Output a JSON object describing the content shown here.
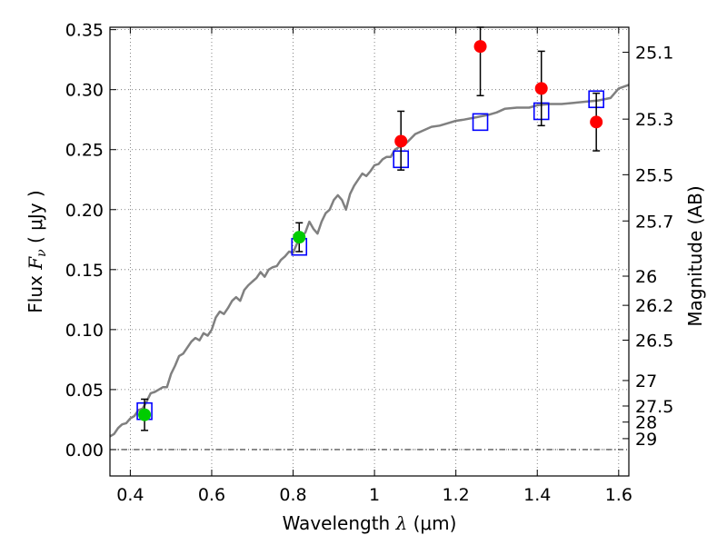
{
  "chart_data": {
    "type": "scatter",
    "title": "",
    "xlabel": {
      "prefix": "Wavelength  ",
      "symbol": "λ",
      "unit": " (μm)"
    },
    "ylabel": {
      "prefix": "Flux  ",
      "symbol": "F",
      "subscript": "ν",
      "unit": " ( μJy )"
    },
    "y2label": "Magnitude (AB)",
    "xlim": [
      0.35,
      1.625
    ],
    "ylim": [
      -0.022,
      0.352
    ],
    "grid": true,
    "xticks": [
      {
        "v": 0.4,
        "label": "0.4"
      },
      {
        "v": 0.6,
        "label": "0.6"
      },
      {
        "v": 0.8,
        "label": "0.8"
      },
      {
        "v": 1.0,
        "label": "1"
      },
      {
        "v": 1.2,
        "label": "1.2"
      },
      {
        "v": 1.4,
        "label": "1.4"
      },
      {
        "v": 1.6,
        "label": "1.6"
      }
    ],
    "yticks": [
      {
        "v": 0.0,
        "label": "0.00"
      },
      {
        "v": 0.05,
        "label": "0.05"
      },
      {
        "v": 0.1,
        "label": "0.10"
      },
      {
        "v": 0.15,
        "label": "0.15"
      },
      {
        "v": 0.2,
        "label": "0.20"
      },
      {
        "v": 0.25,
        "label": "0.25"
      },
      {
        "v": 0.3,
        "label": "0.30"
      },
      {
        "v": 0.35,
        "label": "0.35"
      }
    ],
    "y2ticks": [
      {
        "mag": "25.1"
      },
      {
        "mag": "25.3"
      },
      {
        "mag": "25.5"
      },
      {
        "mag": "25.7"
      },
      {
        "mag": "26"
      },
      {
        "mag": "26.2"
      },
      {
        "mag": "26.5"
      },
      {
        "mag": "27"
      },
      {
        "mag": "27.5"
      },
      {
        "mag": "28"
      },
      {
        "mag": "29"
      }
    ],
    "series": [
      {
        "kind": "line",
        "color": "#808080",
        "points": [
          [
            0.35,
            0.011
          ],
          [
            0.36,
            0.013
          ],
          [
            0.37,
            0.018
          ],
          [
            0.38,
            0.021
          ],
          [
            0.39,
            0.022
          ],
          [
            0.4,
            0.026
          ],
          [
            0.41,
            0.028
          ],
          [
            0.42,
            0.033
          ],
          [
            0.43,
            0.034
          ],
          [
            0.44,
            0.04
          ],
          [
            0.45,
            0.047
          ],
          [
            0.46,
            0.048
          ],
          [
            0.47,
            0.05
          ],
          [
            0.48,
            0.052
          ],
          [
            0.49,
            0.052
          ],
          [
            0.5,
            0.063
          ],
          [
            0.51,
            0.07
          ],
          [
            0.52,
            0.078
          ],
          [
            0.53,
            0.08
          ],
          [
            0.54,
            0.085
          ],
          [
            0.55,
            0.09
          ],
          [
            0.56,
            0.093
          ],
          [
            0.57,
            0.091
          ],
          [
            0.58,
            0.097
          ],
          [
            0.59,
            0.095
          ],
          [
            0.6,
            0.1
          ],
          [
            0.61,
            0.11
          ],
          [
            0.62,
            0.115
          ],
          [
            0.63,
            0.113
          ],
          [
            0.64,
            0.118
          ],
          [
            0.65,
            0.124
          ],
          [
            0.66,
            0.127
          ],
          [
            0.67,
            0.124
          ],
          [
            0.68,
            0.133
          ],
          [
            0.69,
            0.137
          ],
          [
            0.7,
            0.14
          ],
          [
            0.71,
            0.143
          ],
          [
            0.72,
            0.148
          ],
          [
            0.73,
            0.144
          ],
          [
            0.74,
            0.15
          ],
          [
            0.75,
            0.152
          ],
          [
            0.76,
            0.153
          ],
          [
            0.77,
            0.158
          ],
          [
            0.78,
            0.161
          ],
          [
            0.79,
            0.165
          ],
          [
            0.8,
            0.164
          ],
          [
            0.81,
            0.172
          ],
          [
            0.82,
            0.177
          ],
          [
            0.83,
            0.181
          ],
          [
            0.84,
            0.19
          ],
          [
            0.85,
            0.184
          ],
          [
            0.86,
            0.18
          ],
          [
            0.87,
            0.19
          ],
          [
            0.88,
            0.197
          ],
          [
            0.89,
            0.2
          ],
          [
            0.9,
            0.208
          ],
          [
            0.91,
            0.212
          ],
          [
            0.92,
            0.208
          ],
          [
            0.93,
            0.2
          ],
          [
            0.94,
            0.213
          ],
          [
            0.95,
            0.22
          ],
          [
            0.96,
            0.225
          ],
          [
            0.97,
            0.23
          ],
          [
            0.98,
            0.228
          ],
          [
            0.99,
            0.232
          ],
          [
            1.0,
            0.237
          ],
          [
            1.01,
            0.238
          ],
          [
            1.02,
            0.242
          ],
          [
            1.03,
            0.244
          ],
          [
            1.04,
            0.244
          ],
          [
            1.05,
            0.25
          ],
          [
            1.06,
            0.252
          ],
          [
            1.07,
            0.254
          ],
          [
            1.08,
            0.256
          ],
          [
            1.1,
            0.263
          ],
          [
            1.12,
            0.266
          ],
          [
            1.14,
            0.269
          ],
          [
            1.16,
            0.27
          ],
          [
            1.18,
            0.272
          ],
          [
            1.2,
            0.274
          ],
          [
            1.22,
            0.275
          ],
          [
            1.25,
            0.277
          ],
          [
            1.28,
            0.279
          ],
          [
            1.3,
            0.281
          ],
          [
            1.32,
            0.284
          ],
          [
            1.35,
            0.285
          ],
          [
            1.38,
            0.285
          ],
          [
            1.4,
            0.287
          ],
          [
            1.43,
            0.288
          ],
          [
            1.46,
            0.288
          ],
          [
            1.49,
            0.289
          ],
          [
            1.52,
            0.29
          ],
          [
            1.55,
            0.291
          ],
          [
            1.58,
            0.293
          ],
          [
            1.6,
            0.301
          ],
          [
            1.625,
            0.304
          ]
        ]
      },
      {
        "kind": "squares",
        "color": "#0000ff",
        "points": [
          [
            0.435,
            0.032
          ],
          [
            0.815,
            0.169
          ],
          [
            1.065,
            0.242
          ],
          [
            1.26,
            0.273
          ],
          [
            1.41,
            0.282
          ],
          [
            1.545,
            0.292
          ]
        ]
      },
      {
        "kind": "errorpoints",
        "color": "#00cc00",
        "points": [
          {
            "x": 0.435,
            "y": 0.029,
            "lo": 0.016,
            "hi": 0.042
          },
          {
            "x": 0.815,
            "y": 0.177,
            "lo": 0.165,
            "hi": 0.189
          }
        ]
      },
      {
        "kind": "errorpoints",
        "color": "#ff0000",
        "points": [
          {
            "x": 1.065,
            "y": 0.257,
            "lo": 0.233,
            "hi": 0.282
          },
          {
            "x": 1.26,
            "y": 0.336,
            "lo": 0.295,
            "hi": 0.352
          },
          {
            "x": 1.41,
            "y": 0.301,
            "lo": 0.27,
            "hi": 0.332
          },
          {
            "x": 1.545,
            "y": 0.273,
            "lo": 0.249,
            "hi": 0.297
          }
        ]
      }
    ]
  }
}
